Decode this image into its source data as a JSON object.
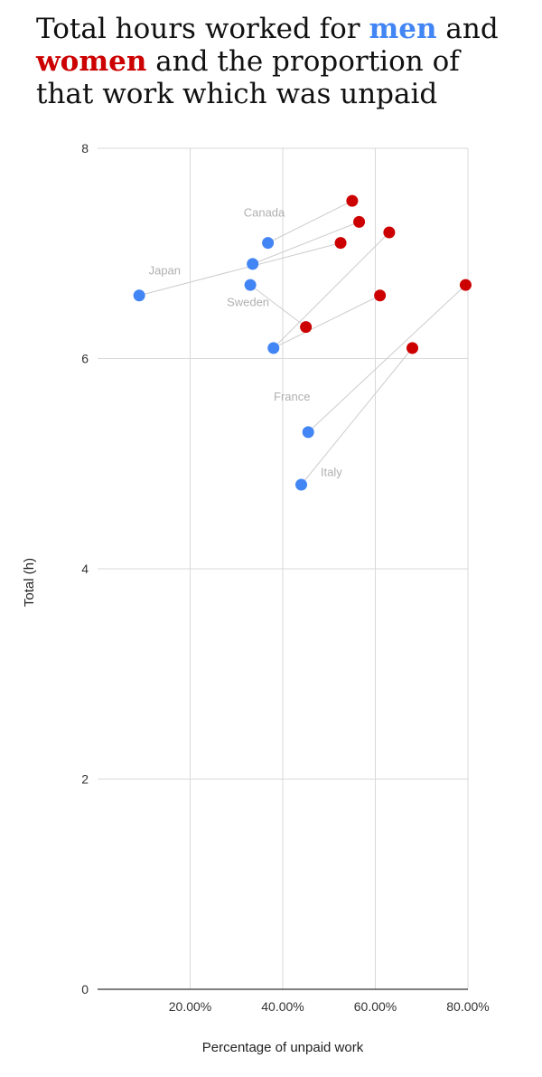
{
  "title": {
    "part1": "Total hours worked for ",
    "men": "men",
    "part2": " and ",
    "women": "women",
    "part3": " and the proportion of that work which was unpaid"
  },
  "colors": {
    "men": "#4285f4",
    "women": "#cc0000",
    "grid": "#d9d9d9",
    "axis": "#333333",
    "connector": "#cccccc",
    "country_label": "#b0b0b0"
  },
  "chart_data": {
    "type": "scatter",
    "title": "Total hours worked for men and women and the proportion of that work which was unpaid",
    "xlabel": "Percentage of unpaid work",
    "ylabel": "Total (h)",
    "xlim": [
      0.0,
      0.8
    ],
    "ylim": [
      0,
      8
    ],
    "x_ticks": [
      0.2,
      0.4,
      0.6,
      0.8
    ],
    "x_tick_labels": [
      "20.00%",
      "40.00%",
      "60.00%",
      "80.00%"
    ],
    "y_ticks": [
      0,
      2,
      4,
      6,
      8
    ],
    "y_tick_labels": [
      "0",
      "2",
      "4",
      "6",
      "8"
    ],
    "grid": true,
    "series": [
      {
        "name": "men",
        "points": [
          {
            "x": 0.368,
            "y": 7.1
          },
          {
            "x": 0.335,
            "y": 6.9
          },
          {
            "x": 0.09,
            "y": 6.6
          },
          {
            "x": 0.33,
            "y": 6.7
          },
          {
            "x": 0.38,
            "y": 6.1
          },
          {
            "x": 0.455,
            "y": 5.3
          },
          {
            "x": 0.44,
            "y": 4.8
          }
        ]
      },
      {
        "name": "women",
        "points": [
          {
            "x": 0.55,
            "y": 7.5
          },
          {
            "x": 0.565,
            "y": 7.3
          },
          {
            "x": 0.525,
            "y": 7.1
          },
          {
            "x": 0.63,
            "y": 7.2
          },
          {
            "x": 0.61,
            "y": 6.6
          },
          {
            "x": 0.45,
            "y": 6.3
          },
          {
            "x": 0.795,
            "y": 6.7
          },
          {
            "x": 0.68,
            "y": 6.1
          }
        ]
      }
    ],
    "connections": [
      {
        "men": 0,
        "women": 0
      },
      {
        "men": 1,
        "women": 1
      },
      {
        "men": 2,
        "women": 2
      },
      {
        "men": 3,
        "women": 5
      },
      {
        "men": 4,
        "women": 3
      },
      {
        "men": 4,
        "women": 4
      },
      {
        "men": 5,
        "women": 6
      },
      {
        "men": 6,
        "women": 7
      }
    ],
    "annotations": [
      {
        "text": "Canada",
        "x": 0.36,
        "y": 7.35
      },
      {
        "text": "Japan",
        "x": 0.145,
        "y": 6.8
      },
      {
        "text": "Sweden",
        "x": 0.325,
        "y": 6.5
      },
      {
        "text": "France",
        "x": 0.42,
        "y": 5.6
      },
      {
        "text": "Italy",
        "x": 0.505,
        "y": 4.88
      }
    ]
  }
}
